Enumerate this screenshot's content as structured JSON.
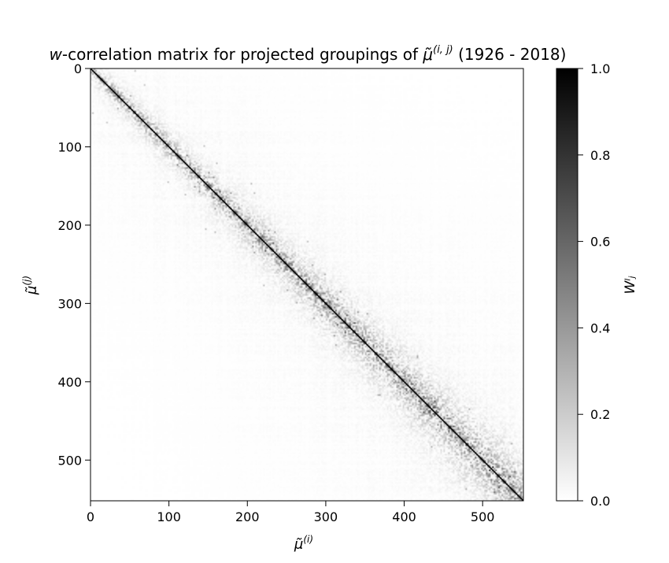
{
  "chart_data": {
    "type": "heatmap",
    "title": {
      "prefix": "w",
      "middle": "-correlation matrix for projected groupings of ",
      "symbol": "μ̃",
      "superscript": "(i, j)",
      "suffix": " (1926 - 2018)"
    },
    "xlabel": {
      "symbol": "μ̃",
      "superscript": "(i)"
    },
    "ylabel": {
      "symbol": "μ̃",
      "superscript": "(j)"
    },
    "colorbar_label": "Wᴵⱼ",
    "x_range": [
      0,
      552
    ],
    "y_range": [
      0,
      552
    ],
    "y_inverted": true,
    "x_ticks": [
      "0",
      "100",
      "200",
      "300",
      "400",
      "500"
    ],
    "y_ticks": [
      "0",
      "100",
      "200",
      "300",
      "400",
      "500"
    ],
    "colorbar_range": [
      0.0,
      1.0
    ],
    "colorbar_ticks": [
      "0.0",
      "0.2",
      "0.4",
      "0.6",
      "0.8",
      "1.0"
    ],
    "colormap": {
      "low": "#ffffff",
      "high": "#000000"
    },
    "diagonal_value": 1.0,
    "pattern": "symmetric matrix; 1.0 on diagonal, weak off-diagonal correlations concentrated near the diagonal, broader near-diagonal band toward the high-index end",
    "grid": false
  }
}
